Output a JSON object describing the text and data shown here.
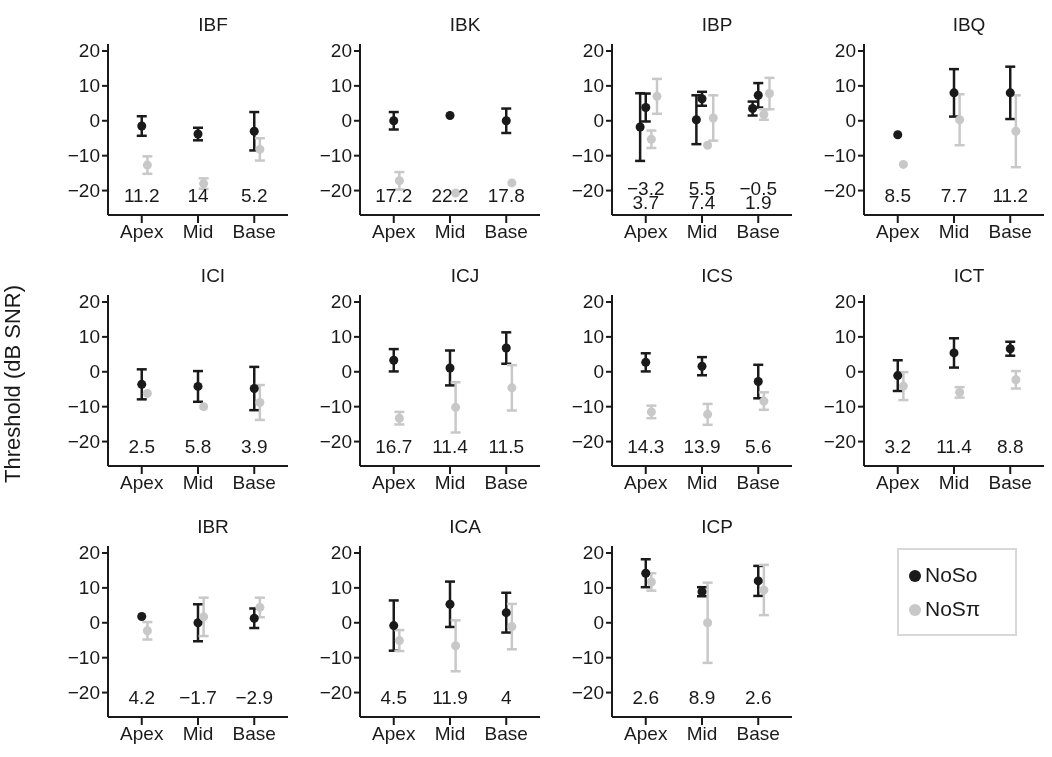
{
  "chart_data": [
    {
      "type": "scatter",
      "title": "IBF",
      "categories": [
        "Apex",
        "Mid",
        "Base"
      ],
      "ylim": [
        -27,
        22
      ],
      "yticks": [
        -20,
        -10,
        0,
        10,
        20
      ],
      "marker": "circle",
      "grid": false,
      "legend": false,
      "series": [
        {
          "color": "#1a1a1a",
          "values": [
            -1.5,
            -3.8,
            -3
          ],
          "errors": [
            2.8,
            1.8,
            5.5
          ]
        },
        {
          "color": "#c8c8c8",
          "values": [
            -12.7,
            -18,
            -8.2
          ],
          "errors": [
            2.5,
            1.5,
            3.2
          ]
        }
      ],
      "annotations": [
        "11.2",
        "14",
        "5.2"
      ]
    },
    {
      "type": "scatter",
      "title": "IBK",
      "categories": [
        "Apex",
        "Mid",
        "Base"
      ],
      "ylim": [
        -27,
        22
      ],
      "yticks": [
        -20,
        -10,
        0,
        10,
        20
      ],
      "marker": "circle",
      "grid": false,
      "legend": false,
      "series": [
        {
          "color": "#1a1a1a",
          "values": [
            0,
            1.5,
            0
          ],
          "errors": [
            2.5,
            null,
            3.5
          ]
        },
        {
          "color": "#c8c8c8",
          "values": [
            -17.2,
            -20.7,
            -17.8
          ],
          "errors": [
            2.5,
            null,
            null
          ]
        }
      ],
      "annotations": [
        "17.2",
        "22.2",
        "17.8"
      ]
    },
    {
      "type": "scatter",
      "title": "IBP",
      "categories": [
        "Apex",
        "Mid",
        "Base"
      ],
      "ylim": [
        -27,
        22
      ],
      "yticks": [
        -20,
        -10,
        0,
        10,
        20
      ],
      "marker": "circle",
      "grid": false,
      "legend": false,
      "series": [
        {
          "color": "#1a1a1a",
          "values": [
            -1.8,
            0.3,
            3.5
          ],
          "errors": [
            9.7,
            7,
            2
          ]
        },
        {
          "color": "#1a1a1a",
          "values": [
            3.8,
            6.3,
            7.3
          ],
          "errors": [
            4,
            2,
            3.5
          ]
        },
        {
          "color": "#c8c8c8",
          "values": [
            -5.3,
            -7,
            1.8
          ],
          "errors": [
            2.5,
            null,
            1.5
          ]
        },
        {
          "color": "#c8c8c8",
          "values": [
            7,
            0.8,
            7.8
          ],
          "errors": [
            5,
            6.5,
            4.5
          ]
        }
      ],
      "annotations": [
        "−3.2",
        "5.5",
        "−0.5",
        "3.7",
        "7.4",
        "1.9"
      ]
    },
    {
      "type": "scatter",
      "title": "IBQ",
      "categories": [
        "Apex",
        "Mid",
        "Base"
      ],
      "ylim": [
        -27,
        22
      ],
      "yticks": [
        -20,
        -10,
        0,
        10,
        20
      ],
      "marker": "circle",
      "grid": false,
      "legend": false,
      "series": [
        {
          "color": "#1a1a1a",
          "values": [
            -4,
            8,
            8
          ],
          "errors": [
            null,
            6.8,
            7.5
          ]
        },
        {
          "color": "#c8c8c8",
          "values": [
            -12.5,
            0.3,
            -3
          ],
          "errors": [
            null,
            7.3,
            10.3
          ]
        }
      ],
      "annotations": [
        "8.5",
        "7.7",
        "11.2"
      ]
    },
    {
      "type": "scatter",
      "title": "ICI",
      "ylabel": "Threshold (dB SNR)",
      "categories": [
        "Apex",
        "Mid",
        "Base"
      ],
      "ylim": [
        -27,
        22
      ],
      "yticks": [
        -20,
        -10,
        0,
        10,
        20
      ],
      "marker": "circle",
      "grid": false,
      "legend": false,
      "series": [
        {
          "color": "#1a1a1a",
          "values": [
            -3.6,
            -4.2,
            -4.8
          ],
          "errors": [
            4.3,
            4.4,
            6.2
          ]
        },
        {
          "color": "#c8c8c8",
          "values": [
            -6.2,
            -10,
            -8.8
          ],
          "errors": [
            null,
            null,
            5
          ]
        }
      ],
      "annotations": [
        "2.5",
        "5.8",
        "3.9"
      ]
    },
    {
      "type": "scatter",
      "title": "ICJ",
      "categories": [
        "Apex",
        "Mid",
        "Base"
      ],
      "ylim": [
        -27,
        22
      ],
      "yticks": [
        -20,
        -10,
        0,
        10,
        20
      ],
      "marker": "circle",
      "grid": false,
      "legend": false,
      "series": [
        {
          "color": "#1a1a1a",
          "values": [
            3.3,
            1.1,
            6.8
          ],
          "errors": [
            3.2,
            5,
            4.5
          ]
        },
        {
          "color": "#c8c8c8",
          "values": [
            -13.3,
            -10.2,
            -4.6
          ],
          "errors": [
            1.8,
            7.2,
            6.5
          ]
        }
      ],
      "annotations": [
        "16.7",
        "11.4",
        "11.5"
      ]
    },
    {
      "type": "scatter",
      "title": "ICS",
      "categories": [
        "Apex",
        "Mid",
        "Base"
      ],
      "ylim": [
        -27,
        22
      ],
      "yticks": [
        -20,
        -10,
        0,
        10,
        20
      ],
      "marker": "circle",
      "grid": false,
      "legend": false,
      "series": [
        {
          "color": "#1a1a1a",
          "values": [
            2.7,
            1.6,
            -2.8
          ],
          "errors": [
            2.6,
            2.6,
            4.8
          ]
        },
        {
          "color": "#c8c8c8",
          "values": [
            -11.5,
            -12.2,
            -8.4
          ],
          "errors": [
            1.8,
            3,
            2.5
          ]
        }
      ],
      "annotations": [
        "14.3",
        "13.9",
        "5.6"
      ]
    },
    {
      "type": "scatter",
      "title": "ICT",
      "categories": [
        "Apex",
        "Mid",
        "Base"
      ],
      "ylim": [
        -27,
        22
      ],
      "yticks": [
        -20,
        -10,
        0,
        10,
        20
      ],
      "marker": "circle",
      "grid": false,
      "legend": false,
      "series": [
        {
          "color": "#1a1a1a",
          "values": [
            -1.1,
            5.4,
            6.6
          ],
          "errors": [
            4.4,
            4.2,
            2
          ]
        },
        {
          "color": "#c8c8c8",
          "values": [
            -4.1,
            -5.9,
            -2.3
          ],
          "errors": [
            4,
            1.5,
            2.5
          ]
        }
      ],
      "annotations": [
        "3.2",
        "11.4",
        "8.8"
      ]
    },
    {
      "type": "scatter",
      "title": "IBR",
      "categories": [
        "Apex",
        "Mid",
        "Base"
      ],
      "ylim": [
        -27,
        22
      ],
      "yticks": [
        -20,
        -10,
        0,
        10,
        20
      ],
      "marker": "circle",
      "grid": false,
      "legend": false,
      "series": [
        {
          "color": "#1a1a1a",
          "values": [
            1.8,
            0,
            1.3
          ],
          "errors": [
            null,
            5.3,
            2.8
          ]
        },
        {
          "color": "#c8c8c8",
          "values": [
            -2.3,
            1.7,
            4.4
          ],
          "errors": [
            2.5,
            5.5,
            2.8
          ]
        }
      ],
      "annotations": [
        "4.2",
        "−1.7",
        "−2.9"
      ]
    },
    {
      "type": "scatter",
      "title": "ICA",
      "categories": [
        "Apex",
        "Mid",
        "Base"
      ],
      "ylim": [
        -27,
        22
      ],
      "yticks": [
        -20,
        -10,
        0,
        10,
        20
      ],
      "marker": "circle",
      "grid": false,
      "legend": false,
      "series": [
        {
          "color": "#1a1a1a",
          "values": [
            -0.8,
            5.3,
            2.9
          ],
          "errors": [
            7.2,
            6.5,
            5.7
          ]
        },
        {
          "color": "#c8c8c8",
          "values": [
            -5.1,
            -6.6,
            -1.1
          ],
          "errors": [
            3,
            7.3,
            6.5
          ]
        }
      ],
      "annotations": [
        "4.5",
        "11.9",
        "4"
      ]
    },
    {
      "type": "scatter",
      "title": "ICP",
      "categories": [
        "Apex",
        "Mid",
        "Base"
      ],
      "ylim": [
        -27,
        22
      ],
      "yticks": [
        -20,
        -10,
        0,
        10,
        20
      ],
      "marker": "circle",
      "grid": false,
      "legend": "right",
      "series": [
        {
          "name": "NoSo",
          "color": "#1a1a1a",
          "values": [
            14.2,
            8.9,
            12
          ],
          "errors": [
            4,
            1.3,
            4.3
          ]
        },
        {
          "name": "NoSπ",
          "color": "#c8c8c8",
          "values": [
            11.7,
            0,
            9.4
          ],
          "errors": [
            2.5,
            11.5,
            7.2
          ]
        }
      ],
      "annotations": [
        "2.6",
        "8.9",
        "2.6"
      ]
    }
  ]
}
